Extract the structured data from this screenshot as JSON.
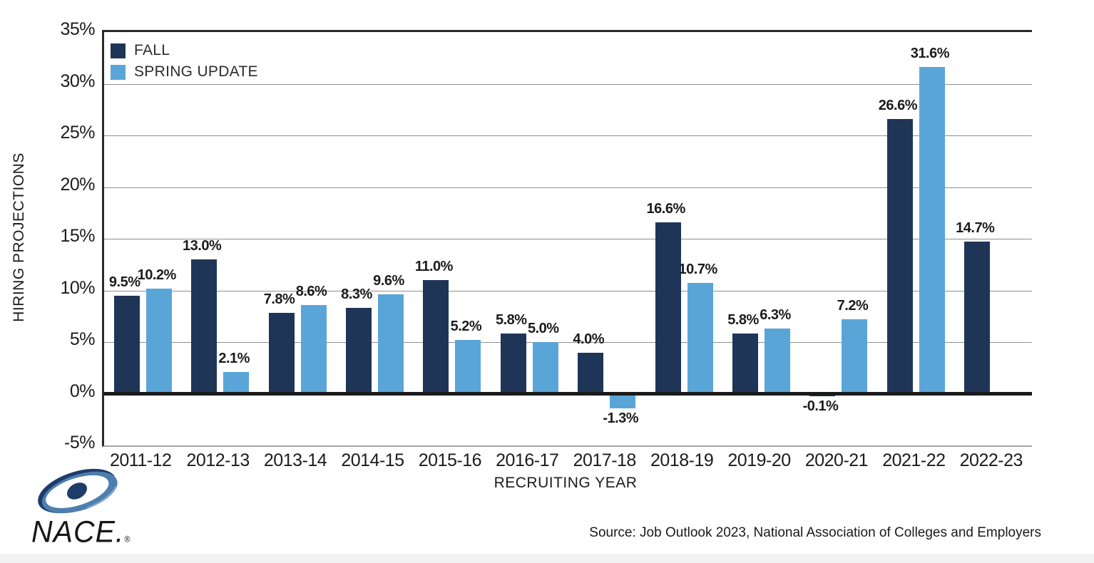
{
  "chart_data": {
    "type": "bar",
    "title": "",
    "xlabel": "RECRUITING YEAR",
    "ylabel": "HIRING PROJECTIONS",
    "categories": [
      "2011-12",
      "2012-13",
      "2013-14",
      "2014-15",
      "2015-16",
      "2016-17",
      "2017-18",
      "2018-19",
      "2019-20",
      "2020-21",
      "2021-22",
      "2022-23"
    ],
    "series": [
      {
        "name": "FALL",
        "color": "#1f3557",
        "values": [
          9.5,
          13.0,
          7.8,
          8.3,
          11.0,
          5.8,
          4.0,
          16.6,
          5.8,
          -0.1,
          26.6,
          14.7
        ]
      },
      {
        "name": "SPRING UPDATE",
        "color": "#5aa5d8",
        "values": [
          10.2,
          2.1,
          8.6,
          9.6,
          5.2,
          5.0,
          -1.3,
          10.7,
          6.3,
          7.2,
          31.6,
          null
        ]
      }
    ],
    "data_labels": {
      "FALL": [
        "9.5%",
        "13.0%",
        "7.8%",
        "8.3%",
        "11.0%",
        "5.8%",
        "4.0%",
        "16.6%",
        "5.8%",
        "-0.1%",
        "26.6%",
        "14.7%"
      ],
      "SPRING UPDATE": [
        "10.2%",
        "2.1%",
        "8.6%",
        "9.6%",
        "5.2%",
        "5.0%",
        "-1.3%",
        "10.7%",
        "6.3%",
        "7.2%",
        "31.6%",
        null
      ]
    },
    "ylim": [
      -5,
      35
    ],
    "yticks": [
      {
        "label": "35%",
        "value": 35
      },
      {
        "label": "30%",
        "value": 30
      },
      {
        "label": "25%",
        "value": 25
      },
      {
        "label": "20%",
        "value": 20
      },
      {
        "label": "15%",
        "value": 15
      },
      {
        "label": "10%",
        "value": 10
      },
      {
        "label": "5%",
        "value": 5
      },
      {
        "label": "0%",
        "value": 0
      },
      {
        "label": "-5%",
        "value": -5
      }
    ],
    "grid": true,
    "gridline_values": [
      30,
      25,
      20,
      15,
      10,
      5
    ],
    "legend_position": "top-left-inside",
    "colors": {
      "grid": "#909090",
      "zero_axis": "#1a1a1a",
      "frame": "#2a2a2a",
      "text": "#1c1c1c"
    }
  },
  "legend": {
    "fall_label": "FALL",
    "spring_label": "SPRING UPDATE"
  },
  "footer": {
    "source": "Source: Job Outlook 2023, National Association of Colleges and Employers",
    "logo_text": "NACE.",
    "logo_reg": "®"
  }
}
